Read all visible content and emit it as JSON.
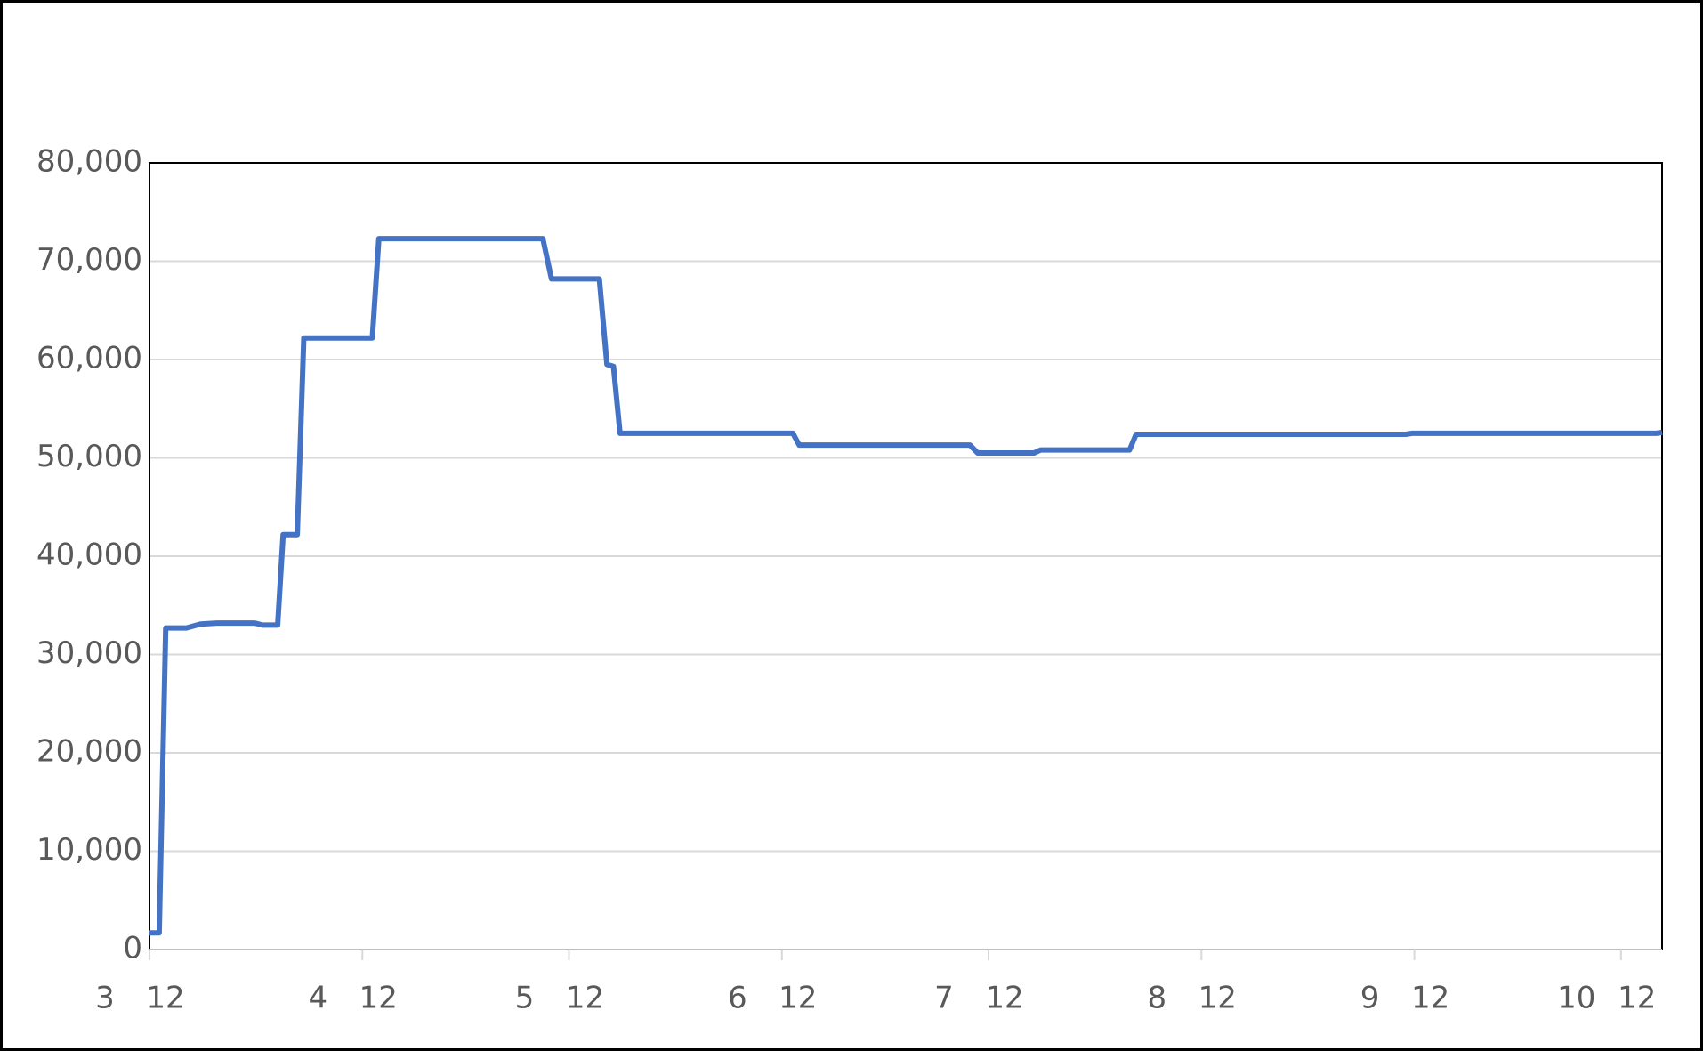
{
  "chart_data": {
    "type": "line",
    "x": [
      3.5,
      3.546,
      3.577,
      3.675,
      3.742,
      3.82,
      4.0,
      4.036,
      4.108,
      4.134,
      4.201,
      4.232,
      4.557,
      4.588,
      5.108,
      5.366,
      5.407,
      5.634,
      5.67,
      5.701,
      5.732,
      6.552,
      6.582,
      7.392,
      7.428,
      7.696,
      7.727,
      8.149,
      8.18,
      9.459,
      9.49,
      10.649,
      10.675
    ],
    "series": [
      {
        "color": "#4472c4",
        "values": [
          1700,
          1700,
          32700,
          32700,
          33100,
          33200,
          33200,
          33000,
          33000,
          42200,
          42200,
          62200,
          62200,
          72300,
          72300,
          72300,
          68200,
          68200,
          59500,
          59300,
          52500,
          52500,
          51300,
          51300,
          50500,
          50500,
          50800,
          50800,
          52400,
          52400,
          52500,
          52500,
          52600
        ]
      }
    ],
    "xlim": [
      3.5,
      10.675
    ],
    "xticks": [
      {
        "value": 3.5,
        "label": "12"
      },
      {
        "value": 4.51,
        "label": "12"
      },
      {
        "value": 5.49,
        "label": "12"
      },
      {
        "value": 6.5,
        "label": "12"
      },
      {
        "value": 7.48,
        "label": "12"
      },
      {
        "value": 8.49,
        "label": "12"
      },
      {
        "value": 9.5,
        "label": "12"
      },
      {
        "value": 10.48,
        "label": "12"
      }
    ],
    "x_groups": [
      {
        "value": 3.5,
        "label": "3"
      },
      {
        "value": 4.51,
        "label": "4"
      },
      {
        "value": 5.49,
        "label": "5"
      },
      {
        "value": 6.5,
        "label": "6"
      },
      {
        "value": 7.48,
        "label": "7"
      },
      {
        "value": 8.49,
        "label": "8"
      },
      {
        "value": 9.5,
        "label": "9"
      },
      {
        "value": 10.48,
        "label": "10"
      }
    ],
    "ylim": [
      0,
      80000
    ],
    "yticks": [
      {
        "value": 0,
        "label": "0"
      },
      {
        "value": 10000,
        "label": "10,000"
      },
      {
        "value": 20000,
        "label": "20,000"
      },
      {
        "value": 30000,
        "label": "30,000"
      },
      {
        "value": 40000,
        "label": "40,000"
      },
      {
        "value": 50000,
        "label": "50,000"
      },
      {
        "value": 60000,
        "label": "60,000"
      },
      {
        "value": 70000,
        "label": "70,000"
      },
      {
        "value": 80000,
        "label": "80,000"
      }
    ],
    "grid": true
  }
}
